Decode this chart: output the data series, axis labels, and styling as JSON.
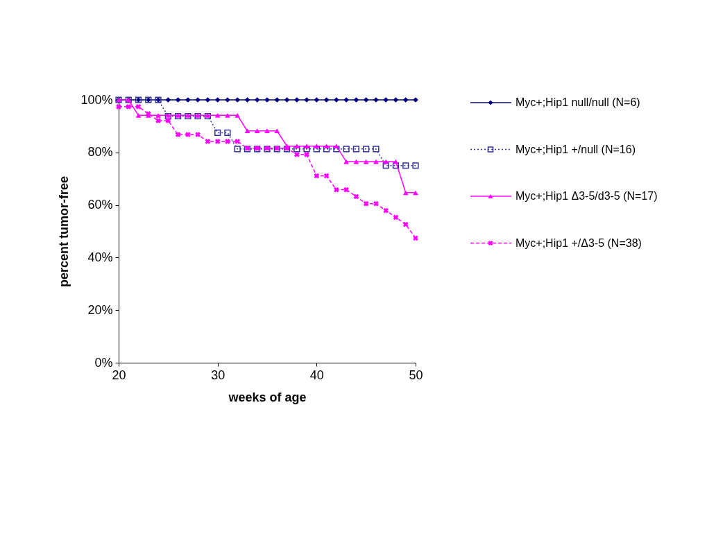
{
  "chart_data": {
    "type": "line",
    "xlabel": "weeks of age",
    "ylabel": "percent tumor-free",
    "x": [
      20,
      21,
      22,
      23,
      24,
      25,
      26,
      27,
      28,
      29,
      30,
      31,
      32,
      33,
      34,
      35,
      36,
      37,
      38,
      39,
      40,
      41,
      42,
      43,
      44,
      45,
      46,
      47,
      48,
      49,
      50
    ],
    "xlim": [
      20,
      50
    ],
    "xticks": [
      20,
      30,
      40,
      50
    ],
    "ylim": [
      0,
      100
    ],
    "yticks": [
      {
        "value": 0,
        "label": "0%"
      },
      {
        "value": 20,
        "label": "20%"
      },
      {
        "value": 40,
        "label": "40%"
      },
      {
        "value": 60,
        "label": "60%"
      },
      {
        "value": 80,
        "label": "80%"
      },
      {
        "value": 100,
        "label": "100%"
      }
    ],
    "grid": false,
    "legend": "right",
    "series": [
      {
        "name": "Myc+;Hip1 null/null (N=6)",
        "color": "#000080",
        "marker": "diamond",
        "line_style": "solid",
        "values": [
          100,
          100,
          100,
          100,
          100,
          100,
          100,
          100,
          100,
          100,
          100,
          100,
          100,
          100,
          100,
          100,
          100,
          100,
          100,
          100,
          100,
          100,
          100,
          100,
          100,
          100,
          100,
          100,
          100,
          100,
          100
        ]
      },
      {
        "name": "Myc+;Hip1 +/null (N=16)",
        "color": "#333399",
        "marker": "square",
        "line_style": "dotted",
        "values": [
          100,
          100,
          100,
          100,
          100,
          93.8,
          93.8,
          93.8,
          93.8,
          93.8,
          87.5,
          87.5,
          81.3,
          81.3,
          81.3,
          81.3,
          81.3,
          81.3,
          81.3,
          81.3,
          81.3,
          81.3,
          81.3,
          81.3,
          81.3,
          81.3,
          81.3,
          75,
          75,
          75,
          75
        ]
      },
      {
        "name": "Myc+;Hip1 Δ3-5/d3-5 (N=17)",
        "color": "#ff00ff",
        "marker": "triangle",
        "line_style": "solid",
        "values": [
          100,
          100,
          94.1,
          94.1,
          94.1,
          94.1,
          94.1,
          94.1,
          94.1,
          94.1,
          94.1,
          94.1,
          94.1,
          88.2,
          88.2,
          88.2,
          88.2,
          82.4,
          82.4,
          82.4,
          82.4,
          82.4,
          82.4,
          76.5,
          76.5,
          76.5,
          76.5,
          76.5,
          76.5,
          64.7,
          64.7
        ]
      },
      {
        "name": "Myc+;Hip1 +/Δ3-5 (N=38)",
        "color": "#ff00ff",
        "marker": "cross",
        "line_style": "dashed",
        "values": [
          97.4,
          97.4,
          97.4,
          94.7,
          92.1,
          92.1,
          86.8,
          86.8,
          86.8,
          84.2,
          84.2,
          84.2,
          84.2,
          81.6,
          81.6,
          81.6,
          81.6,
          81.6,
          79.2,
          79.2,
          71.1,
          71.1,
          65.8,
          65.8,
          63.2,
          60.5,
          60.5,
          57.9,
          55.3,
          52.6,
          47.4
        ]
      }
    ]
  }
}
